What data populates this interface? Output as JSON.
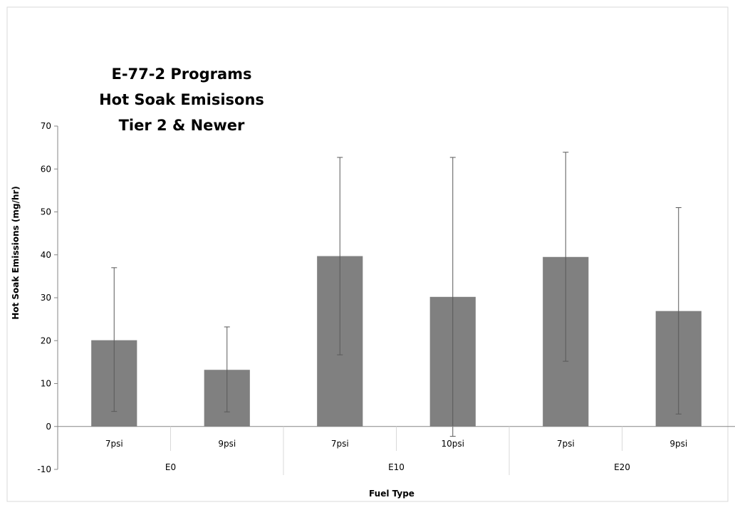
{
  "chart_data": {
    "type": "bar",
    "title_lines": [
      "E-77-2 Programs",
      "Hot Soak Emisisons",
      "Tier 2 & Newer"
    ],
    "xlabel": "Fuel Type",
    "ylabel": "Hot Soak Emissions (mg/hr)",
    "ylim": [
      -10,
      70
    ],
    "yticks": [
      -10,
      0,
      10,
      20,
      30,
      40,
      50,
      60,
      70
    ],
    "grid": false,
    "legend": "none",
    "bar_color": "#808080",
    "groups": [
      {
        "label": "E0",
        "categories": [
          {
            "label": "7psi",
            "value": 20.1,
            "err_low": 3.5,
            "err_high": 37.0
          },
          {
            "label": "9psi",
            "value": 13.2,
            "err_low": 3.4,
            "err_high": 23.2
          }
        ]
      },
      {
        "label": "E10",
        "categories": [
          {
            "label": "7psi",
            "value": 39.7,
            "err_low": 16.7,
            "err_high": 62.7
          },
          {
            "label": "10psi",
            "value": 30.2,
            "err_low": -2.3,
            "err_high": 62.7
          }
        ]
      },
      {
        "label": "E20",
        "categories": [
          {
            "label": "7psi",
            "value": 39.5,
            "err_low": 15.2,
            "err_high": 63.9
          },
          {
            "label": "9psi",
            "value": 26.9,
            "err_low": 2.9,
            "err_high": 51.0
          }
        ]
      }
    ]
  }
}
